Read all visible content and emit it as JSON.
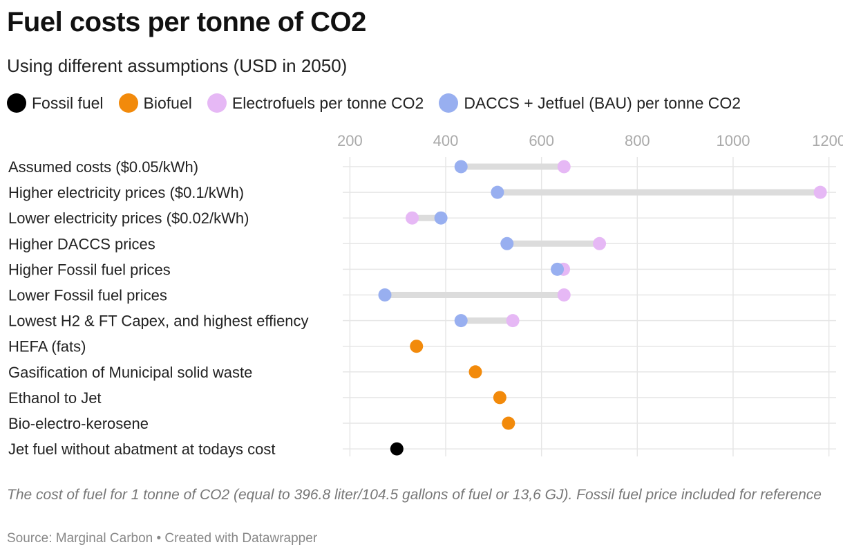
{
  "title": "Fuel costs per tonne of CO2",
  "subtitle": "Using different assumptions (USD in 2050)",
  "legend": [
    {
      "label": "Fossil fuel",
      "color": "#000000",
      "icon": "circle"
    },
    {
      "label": "Biofuel",
      "color": "#f28a0b",
      "icon": "circle"
    },
    {
      "label": "Electrofuels per tonne CO2",
      "color": "#e6b8f5",
      "icon": "circle"
    },
    {
      "label": "DACCS + Jetfuel (BAU) per tonne CO2",
      "color": "#98aff0",
      "icon": "circle"
    }
  ],
  "notes": "The cost of fuel for 1 tonne of CO2 (equal to 396.8 liter/104.5 gallons of fuel or 13,6 GJ). Fossil fuel price included for reference",
  "source": "Source: Marginal Carbon • Created with Datawrapper",
  "chart_data": {
    "type": "dot-range",
    "xlim": [
      185,
      1215
    ],
    "xticks": [
      200,
      400,
      600,
      800,
      1000,
      1200
    ],
    "grid": true,
    "legend_position": "top",
    "series": [
      {
        "name": "Fossil fuel",
        "color": "#000000"
      },
      {
        "name": "Biofuel",
        "color": "#f28a0b"
      },
      {
        "name": "Electrofuels per tonne CO2",
        "color": "#e6b8f5"
      },
      {
        "name": "DACCS + Jetfuel (BAU) per tonne CO2",
        "color": "#98aff0"
      }
    ],
    "rows": [
      {
        "label": "Assumed costs ($0.05/kWh)",
        "values": {
          "Electrofuels per tonne CO2": 647,
          "DACCS + Jetfuel (BAU) per tonne CO2": 432
        }
      },
      {
        "label": "Higher electricity prices ($0.1/kWh)",
        "values": {
          "Electrofuels per tonne CO2": 1182,
          "DACCS + Jetfuel (BAU) per tonne CO2": 508
        }
      },
      {
        "label": "Lower electricity prices ($0.02/kWh)",
        "values": {
          "Electrofuels per tonne CO2": 330,
          "DACCS + Jetfuel (BAU) per tonne CO2": 390
        }
      },
      {
        "label": "Higher DACCS prices",
        "values": {
          "Electrofuels per tonne CO2": 721,
          "DACCS + Jetfuel (BAU) per tonne CO2": 528
        }
      },
      {
        "label": "Higher Fossil fuel prices",
        "values": {
          "Electrofuels per tonne CO2": 646,
          "DACCS + Jetfuel (BAU) per tonne CO2": 633
        }
      },
      {
        "label": "Lower Fossil fuel prices",
        "values": {
          "Electrofuels per tonne CO2": 647,
          "DACCS + Jetfuel (BAU) per tonne CO2": 273
        }
      },
      {
        "label": "Lowest H2 & FT Capex, and highest effiency",
        "values": {
          "Electrofuels per tonne CO2": 540,
          "DACCS + Jetfuel (BAU) per tonne CO2": 432
        }
      },
      {
        "label": "HEFA (fats)",
        "values": {
          "Biofuel": 339
        }
      },
      {
        "label": "Gasification of Municipal solid waste",
        "values": {
          "Biofuel": 462
        }
      },
      {
        "label": "Ethanol to Jet",
        "values": {
          "Biofuel": 513
        }
      },
      {
        "label": "Bio-electro-kerosene",
        "values": {
          "Biofuel": 531
        }
      },
      {
        "label": "Jet fuel without abatment at todays cost",
        "values": {
          "Fossil fuel": 298
        }
      }
    ]
  }
}
